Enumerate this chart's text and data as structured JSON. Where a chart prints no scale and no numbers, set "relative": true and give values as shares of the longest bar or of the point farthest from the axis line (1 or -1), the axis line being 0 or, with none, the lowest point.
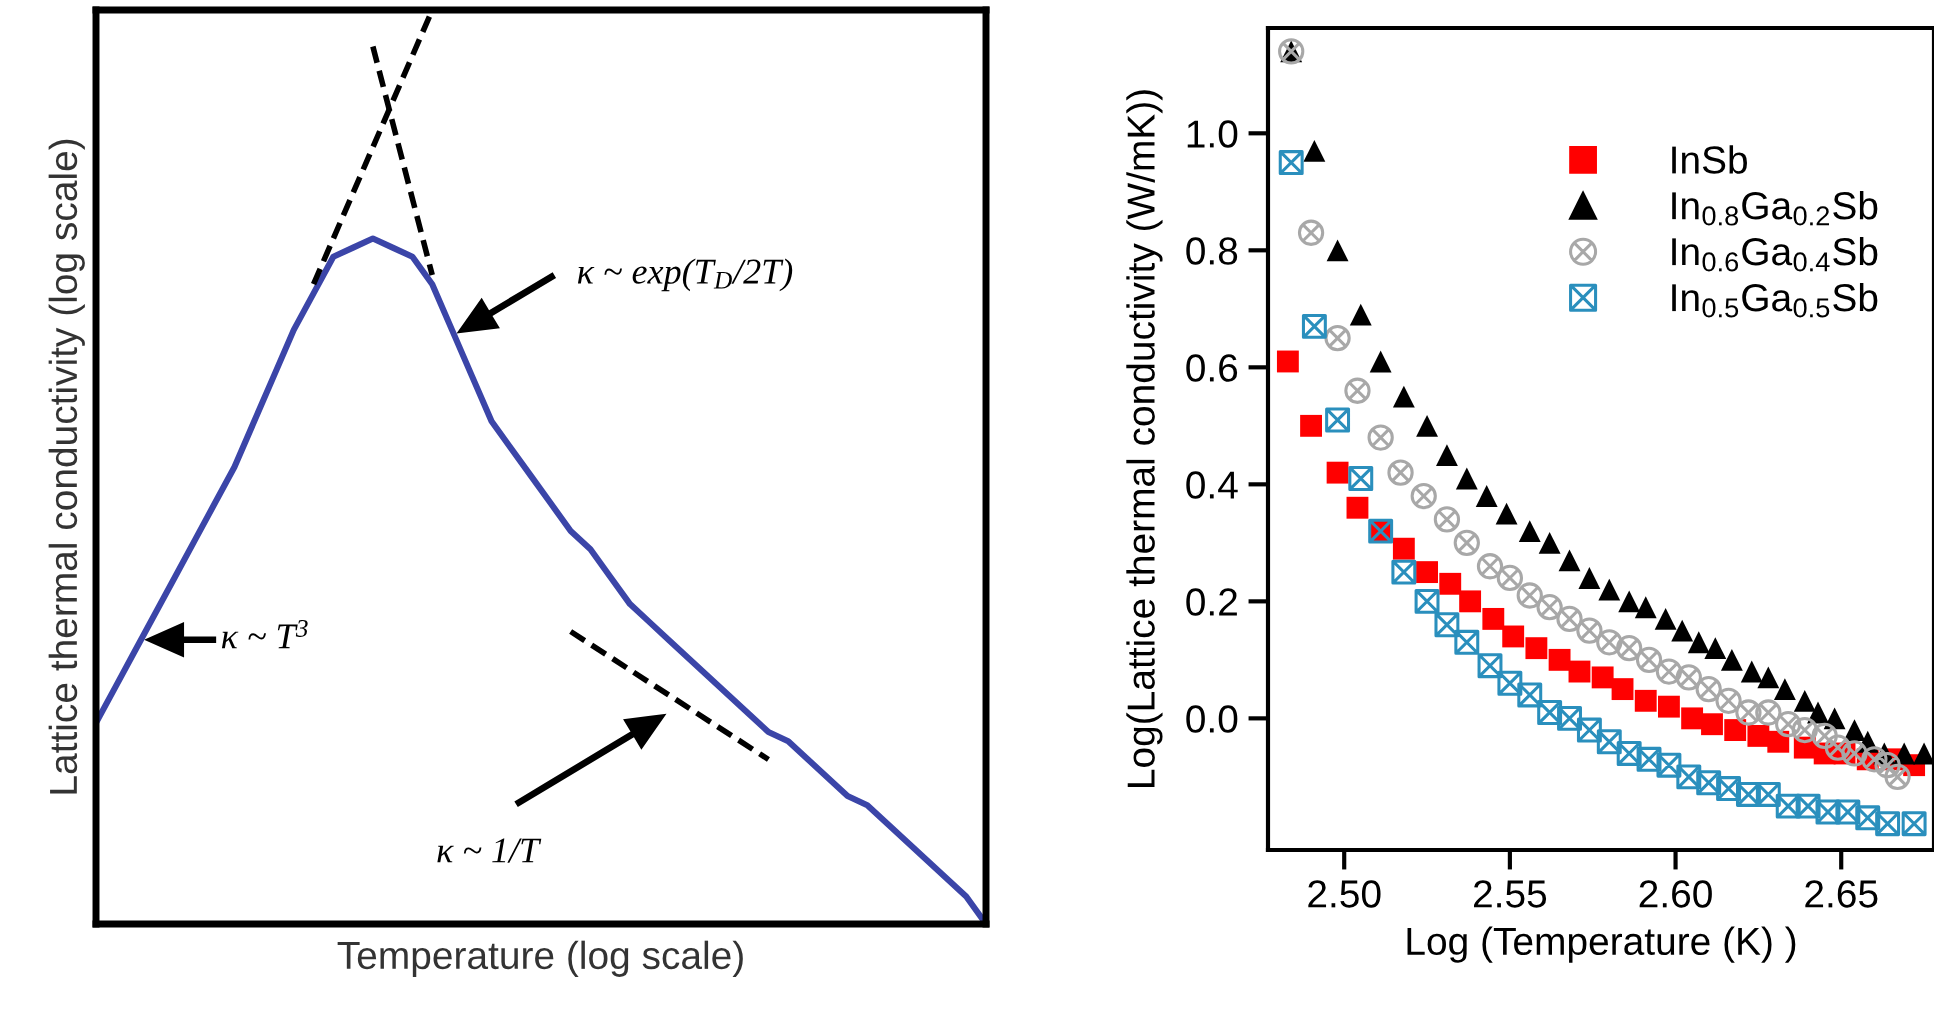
{
  "chart_data": [
    {
      "type": "line",
      "relative": true,
      "xlabel": "Temperature (log scale)",
      "ylabel": "Lattice thermal conductivity (log scale)",
      "tick_labels": false,
      "categories": [
        null,
        null,
        null,
        null,
        null,
        null,
        null,
        null,
        null,
        null,
        null,
        null,
        null,
        null,
        null,
        null,
        null,
        null,
        null,
        null,
        null,
        null,
        null,
        null,
        null,
        null,
        null,
        null,
        null,
        null,
        null,
        null,
        null,
        null,
        null,
        null,
        null,
        null,
        null,
        null,
        null,
        null,
        null,
        null,
        null,
        null
      ],
      "series": [
        {
          "color": "#3b45a8",
          "line_style": "solid",
          "values": [
            0.22,
            0.26,
            0.3,
            0.34,
            0.38,
            0.42,
            0.46,
            0.5,
            0.55,
            0.6,
            0.65,
            0.69,
            0.73,
            0.74,
            0.75,
            0.74,
            0.73,
            0.7,
            0.65,
            0.6,
            0.55,
            0.52,
            0.49,
            0.46,
            0.43,
            0.41,
            0.38,
            0.35,
            0.33,
            0.31,
            0.29,
            0.27,
            0.25,
            0.23,
            0.21,
            0.2,
            0.18,
            0.16,
            0.14,
            0.13,
            0.11,
            0.09,
            0.07,
            0.05,
            0.03,
            0
          ]
        },
        {
          "color": "#000000",
          "line_style": "dashed",
          "values": [
            null,
            null,
            null,
            null,
            null,
            null,
            null,
            null,
            null,
            null,
            null,
            0.7,
            null,
            null,
            null,
            null,
            null,
            1,
            null,
            null,
            null,
            null,
            null,
            null,
            null,
            null,
            null,
            null,
            null,
            null,
            null,
            null,
            null,
            null,
            null,
            null,
            null,
            null,
            null,
            null,
            null,
            null,
            null,
            null,
            null,
            null
          ]
        },
        {
          "color": "#000000",
          "line_style": "dashed",
          "values": [
            null,
            null,
            null,
            null,
            null,
            null,
            null,
            null,
            null,
            null,
            null,
            null,
            null,
            null,
            0.96,
            null,
            null,
            0.71,
            null,
            null,
            null,
            null,
            null,
            null,
            null,
            null,
            null,
            null,
            null,
            null,
            null,
            null,
            null,
            null,
            null,
            null,
            null,
            null,
            null,
            null,
            null,
            null,
            null,
            null,
            null,
            null
          ]
        },
        {
          "color": "#000000",
          "line_style": "dashed",
          "values": [
            null,
            null,
            null,
            null,
            null,
            null,
            null,
            null,
            null,
            null,
            null,
            null,
            null,
            null,
            null,
            null,
            null,
            null,
            null,
            null,
            null,
            null,
            null,
            null,
            0.32,
            null,
            null,
            null,
            null,
            null,
            null,
            null,
            null,
            null,
            0.18,
            null,
            null,
            null,
            null,
            null,
            null,
            null,
            null,
            null,
            null,
            null
          ]
        }
      ],
      "annotations": [
        "κ ~ T$^{3}$",
        "κ ~ exp(T$_{D}$/2T)",
        "κ ~ 1/T"
      ]
    },
    {
      "type": "scatter",
      "xlabel": "Log (Temperature (K) )",
      "ylabel": "Log(Lattice thermal conductivity (W/mK))",
      "grid": false,
      "legend": "top right",
      "xlim": [
        2.477,
        2.678
      ],
      "ylim": [
        -0.225,
        1.18
      ],
      "xticks": [
        {
          "value": 2.5,
          "label": "2.50"
        },
        {
          "value": 2.55,
          "label": "2.55"
        },
        {
          "value": 2.6,
          "label": "2.60"
        },
        {
          "value": 2.65,
          "label": "2.65"
        }
      ],
      "yticks": [
        {
          "value": 0,
          "label": "0.0"
        },
        {
          "value": 0.2,
          "label": "0.2"
        },
        {
          "value": 0.4,
          "label": "0.4"
        },
        {
          "value": 0.6,
          "label": "0.6"
        },
        {
          "value": 0.8,
          "label": "0.8"
        },
        {
          "value": 1.0,
          "label": "1.0"
        }
      ],
      "series": [
        {
          "name": "InSb",
          "color": "#ff0000",
          "marker": "square",
          "x": [
            2.483,
            2.49,
            2.498,
            2.504,
            2.511,
            2.518,
            2.525,
            2.532,
            2.538,
            2.545,
            2.551,
            2.558,
            2.565,
            2.571,
            2.578,
            2.584,
            2.591,
            2.598,
            2.605,
            2.611,
            2.618,
            2.625,
            2.631,
            2.639,
            2.645,
            2.651,
            2.658,
            2.666,
            2.672
          ],
          "values": [
            0.61,
            0.5,
            0.42,
            0.36,
            0.32,
            0.29,
            0.25,
            0.23,
            0.2,
            0.17,
            0.14,
            0.12,
            0.1,
            0.08,
            0.07,
            0.05,
            0.03,
            0.02,
            0.0,
            -0.01,
            -0.02,
            -0.03,
            -0.04,
            -0.05,
            -0.06,
            -0.06,
            -0.07,
            -0.07,
            -0.08
          ]
        },
        {
          "name": "In$_{0.8}$Ga$_{0.2}$Sb",
          "color": "#000000",
          "marker": "triangle",
          "x": [
            2.484,
            2.491,
            2.498,
            2.505,
            2.511,
            2.518,
            2.525,
            2.531,
            2.537,
            2.543,
            2.549,
            2.556,
            2.562,
            2.568,
            2.574,
            2.58,
            2.586,
            2.591,
            2.597,
            2.602,
            2.607,
            2.612,
            2.617,
            2.623,
            2.628,
            2.633,
            2.639,
            2.643,
            2.648,
            2.654,
            2.658,
            2.663,
            2.669,
            2.675
          ],
          "values": [
            1.14,
            0.97,
            0.8,
            0.69,
            0.61,
            0.55,
            0.5,
            0.45,
            0.41,
            0.38,
            0.35,
            0.32,
            0.3,
            0.27,
            0.24,
            0.22,
            0.2,
            0.19,
            0.17,
            0.15,
            0.13,
            0.12,
            0.1,
            0.08,
            0.07,
            0.05,
            0.03,
            0.01,
            0.0,
            -0.02,
            -0.04,
            -0.06,
            -0.06,
            -0.06
          ]
        },
        {
          "name": "In$_{0.6}$Ga$_{0.4}$Sb",
          "color": "#a8a8a8",
          "marker": "cross",
          "x": [
            2.484,
            2.49,
            2.498,
            2.504,
            2.511,
            2.517,
            2.524,
            2.531,
            2.537,
            2.544,
            2.55,
            2.556,
            2.562,
            2.568,
            2.574,
            2.58,
            2.586,
            2.592,
            2.598,
            2.604,
            2.61,
            2.616,
            2.622,
            2.628,
            2.634,
            2.639,
            2.645,
            2.649,
            2.654,
            2.66,
            2.664,
            2.667
          ],
          "values": [
            1.14,
            0.83,
            0.65,
            0.56,
            0.48,
            0.42,
            0.38,
            0.34,
            0.3,
            0.26,
            0.24,
            0.21,
            0.19,
            0.17,
            0.15,
            0.13,
            0.12,
            0.1,
            0.08,
            0.07,
            0.05,
            0.03,
            0.01,
            0.01,
            -0.01,
            -0.02,
            -0.03,
            -0.05,
            -0.06,
            -0.07,
            -0.08,
            -0.1
          ]
        },
        {
          "name": "In$_{0.5}$Ga$_{0.5}$Sb",
          "color": "#2a8fbd",
          "marker": "cross",
          "x": [
            2.484,
            2.491,
            2.498,
            2.505,
            2.511,
            2.518,
            2.525,
            2.531,
            2.537,
            2.544,
            2.55,
            2.556,
            2.562,
            2.568,
            2.574,
            2.58,
            2.586,
            2.592,
            2.598,
            2.604,
            2.61,
            2.616,
            2.622,
            2.628,
            2.634,
            2.64,
            2.646,
            2.652,
            2.658,
            2.664,
            2.672
          ],
          "values": [
            0.95,
            0.67,
            0.51,
            0.41,
            0.32,
            0.25,
            0.2,
            0.16,
            0.13,
            0.09,
            0.06,
            0.04,
            0.01,
            0.0,
            -0.02,
            -0.04,
            -0.06,
            -0.07,
            -0.08,
            -0.1,
            -0.11,
            -0.12,
            -0.13,
            -0.13,
            -0.15,
            -0.15,
            -0.16,
            -0.16,
            -0.17,
            -0.18,
            -0.18
          ]
        }
      ]
    }
  ]
}
